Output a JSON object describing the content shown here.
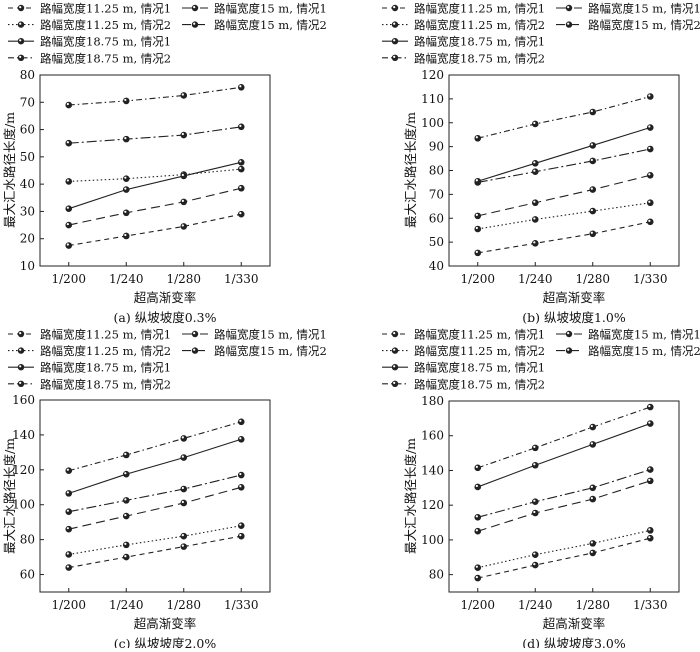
{
  "chart_data": [
    {
      "type": "line",
      "title": "(a) 纵坡坡度0.3%",
      "xlabel": "超高渐变率",
      "ylabel": "最大汇水路径长度/m",
      "categories": [
        "1/200",
        "1/240",
        "1/280",
        "1/330"
      ],
      "ylim": [
        10,
        80
      ],
      "yticks": [
        10,
        20,
        30,
        40,
        50,
        60,
        70,
        80
      ],
      "series": [
        {
          "name": "路幅宽度11.25 m, 情况1",
          "values": [
            17.5,
            21,
            24.5,
            29
          ]
        },
        {
          "name": "路幅宽度15 m, 情况1",
          "values": [
            55,
            56.5,
            58,
            61
          ]
        },
        {
          "name": "路幅宽度11.25 m, 情况2",
          "values": [
            41,
            42,
            43.5,
            45.5
          ]
        },
        {
          "name": "路幅宽度15 m, 情况2",
          "values": [
            25,
            29.5,
            33.5,
            38.5
          ]
        },
        {
          "name": "路幅宽度18.75 m, 情况1",
          "values": [
            31,
            38,
            43,
            48
          ]
        },
        {
          "name": "路幅宽度18.75 m, 情况2",
          "values": [
            69,
            70.5,
            72.5,
            75.5
          ]
        }
      ]
    },
    {
      "type": "line",
      "title": "(b) 纵坡坡度1.0%",
      "xlabel": "超高渐变率",
      "ylabel": "最大汇水路径长度/m",
      "categories": [
        "1/200",
        "1/240",
        "1/280",
        "1/330"
      ],
      "ylim": [
        40,
        120
      ],
      "yticks": [
        40,
        50,
        60,
        70,
        80,
        90,
        100,
        110,
        120
      ],
      "series": [
        {
          "name": "路幅宽度11.25 m, 情况1",
          "values": [
            45.5,
            49.5,
            53.5,
            58.5
          ]
        },
        {
          "name": "路幅宽度15 m, 情况1",
          "values": [
            75,
            79.5,
            84,
            89
          ]
        },
        {
          "name": "路幅宽度11.25 m, 情况2",
          "values": [
            55.5,
            59.5,
            63,
            66.5
          ]
        },
        {
          "name": "路幅宽度15 m, 情况2",
          "values": [
            61,
            66.5,
            72,
            78
          ]
        },
        {
          "name": "路幅宽度18.75 m, 情况1",
          "values": [
            75.5,
            83,
            90.5,
            98
          ]
        },
        {
          "name": "路幅宽度18.75 m, 情况2",
          "values": [
            93.5,
            99.5,
            104.5,
            111
          ]
        }
      ]
    },
    {
      "type": "line",
      "title": "(c) 纵坡坡度2.0%",
      "xlabel": "超高渐变率",
      "ylabel": "最大汇水路径长度/m",
      "categories": [
        "1/200",
        "1/240",
        "1/280",
        "1/330"
      ],
      "ylim": [
        50,
        160
      ],
      "yticks": [
        60,
        80,
        100,
        120,
        140,
        160
      ],
      "series": [
        {
          "name": "路幅宽度11.25 m, 情况1",
          "values": [
            64,
            70,
            76,
            82
          ]
        },
        {
          "name": "路幅宽度15 m, 情况1",
          "values": [
            96,
            102.5,
            109,
            117
          ]
        },
        {
          "name": "路幅宽度11.25 m, 情况2",
          "values": [
            71.5,
            77,
            82,
            88
          ]
        },
        {
          "name": "路幅宽度15 m, 情况2",
          "values": [
            86,
            93.5,
            101,
            110
          ]
        },
        {
          "name": "路幅宽度18.75 m, 情况1",
          "values": [
            106.5,
            117.5,
            127,
            137.5
          ]
        },
        {
          "name": "路幅宽度18.75 m, 情况2",
          "values": [
            119.5,
            128.5,
            138,
            147.5
          ]
        }
      ]
    },
    {
      "type": "line",
      "title": "(d) 纵坡坡度3.0%",
      "xlabel": "超高渐变率",
      "ylabel": "最大汇水路径长度/m",
      "categories": [
        "1/200",
        "1/240",
        "1/280",
        "1/330"
      ],
      "ylim": [
        70,
        180
      ],
      "yticks": [
        80,
        100,
        120,
        140,
        160,
        180
      ],
      "series": [
        {
          "name": "路幅宽度11.25 m, 情况1",
          "values": [
            78,
            85.5,
            92.5,
            101
          ]
        },
        {
          "name": "路幅宽度15 m, 情况1",
          "values": [
            113,
            122,
            130,
            140.5
          ]
        },
        {
          "name": "路幅宽度11.25 m, 情况2",
          "values": [
            84,
            91.5,
            98,
            105.5
          ]
        },
        {
          "name": "路幅宽度15 m, 情况2",
          "values": [
            105,
            115.5,
            123.5,
            134
          ]
        },
        {
          "name": "路幅宽度18.75 m, 情况1",
          "values": [
            130.5,
            143,
            155,
            167
          ]
        },
        {
          "name": "路幅宽度18.75 m, 情况2",
          "values": [
            141.5,
            153,
            165,
            176.5
          ]
        }
      ]
    }
  ]
}
